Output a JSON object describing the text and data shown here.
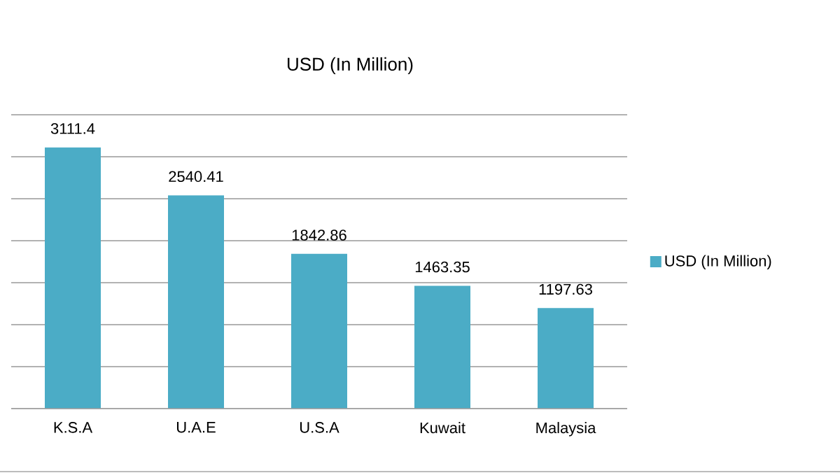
{
  "chart_data": {
    "type": "bar",
    "title": "USD (In Million)",
    "categories": [
      "K.S.A",
      "U.A.E",
      "U.S.A",
      "Kuwait",
      "Malaysia"
    ],
    "series": [
      {
        "name": "USD (In Million)",
        "color": "#4bacc6",
        "values": [
          3111.4,
          2540.41,
          1842.86,
          1463.35,
          1197.63
        ]
      }
    ],
    "ylim": [
      0,
      3500
    ],
    "yticks": [
      {
        "value": 0,
        "label": null
      },
      {
        "value": 500,
        "label": null
      },
      {
        "value": 1000,
        "label": null
      },
      {
        "value": 1500,
        "label": null
      },
      {
        "value": 2000,
        "label": null
      },
      {
        "value": 2500,
        "label": null
      },
      {
        "value": 3000,
        "label": null
      },
      {
        "value": 3500,
        "label": null
      }
    ],
    "grid": "y",
    "tick_labels": "x",
    "data_labels": true,
    "legend": "right"
  }
}
